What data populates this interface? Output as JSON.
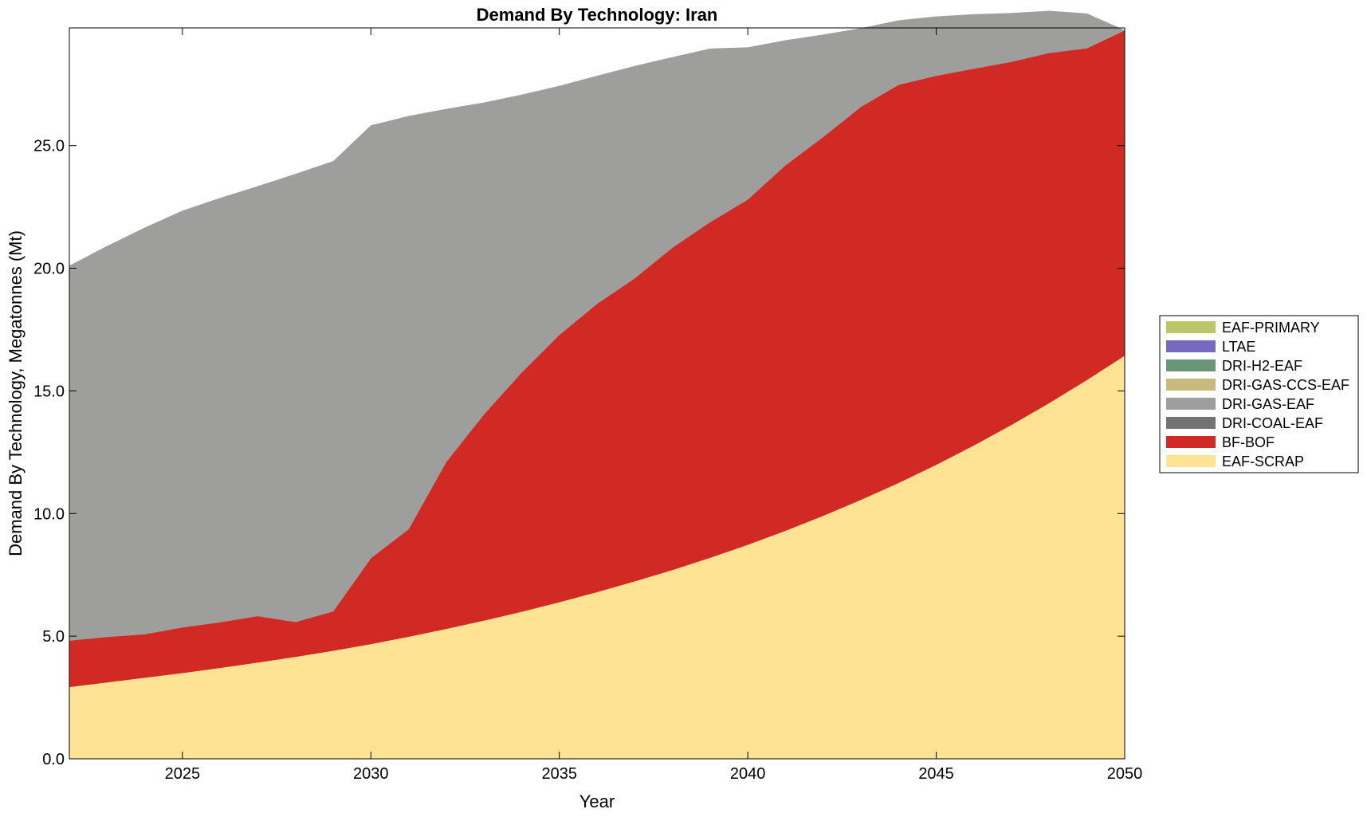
{
  "chart_data": {
    "type": "area",
    "stacked": true,
    "title": "Demand By Technology: Iran",
    "xlabel": "Year",
    "ylabel": "Demand By Technology, Megatonnes (Mt)",
    "xlim": [
      2022,
      2050
    ],
    "ylim": [
      0,
      29.8
    ],
    "xticks": [
      "2025",
      "2030",
      "2035",
      "2040",
      "2045",
      "2050"
    ],
    "yticks": [
      "0.0",
      "5.0",
      "10.0",
      "15.0",
      "20.0",
      "25.0"
    ],
    "grid": false,
    "legend_position": "right",
    "x": [
      2022,
      2023,
      2024,
      2025,
      2026,
      2027,
      2028,
      2029,
      2030,
      2031,
      2032,
      2033,
      2034,
      2035,
      2036,
      2037,
      2038,
      2039,
      2040,
      2041,
      2042,
      2043,
      2044,
      2045,
      2046,
      2047,
      2048,
      2049,
      2050
    ],
    "series": [
      {
        "name": "EAF-SCRAP",
        "color": "#fee395",
        "values": [
          2.93,
          3.12,
          3.31,
          3.5,
          3.71,
          3.93,
          4.16,
          4.41,
          4.68,
          4.98,
          5.3,
          5.64,
          6.0,
          6.39,
          6.8,
          7.24,
          7.7,
          8.2,
          8.73,
          9.3,
          9.91,
          10.56,
          11.25,
          11.99,
          12.78,
          13.62,
          14.51,
          15.45,
          16.44
        ]
      },
      {
        "name": "BF-BOF",
        "color": "#d12a24",
        "values": [
          1.89,
          1.85,
          1.77,
          1.86,
          1.86,
          1.89,
          1.42,
          1.6,
          3.5,
          4.38,
          6.8,
          8.4,
          9.75,
          10.89,
          11.75,
          12.35,
          13.14,
          13.68,
          14.07,
          14.9,
          15.44,
          16.02,
          16.23,
          15.86,
          15.36,
          14.8,
          14.27,
          13.52,
          13.26
        ]
      },
      {
        "name": "DRI-COAL-EAF",
        "color": "#727272",
        "values": [
          0,
          0,
          0,
          0,
          0,
          0,
          0,
          0,
          0,
          0,
          0,
          0,
          0,
          0,
          0,
          0,
          0,
          0,
          0,
          0,
          0,
          0,
          0,
          0,
          0,
          0,
          0,
          0,
          0
        ]
      },
      {
        "name": "DRI-GAS-EAF",
        "color": "#9e9e9c",
        "values": [
          15.28,
          15.93,
          16.57,
          16.98,
          17.29,
          17.52,
          18.26,
          18.35,
          17.64,
          16.84,
          14.39,
          12.71,
          11.32,
          10.15,
          9.29,
          8.65,
          7.76,
          7.07,
          6.2,
          5.09,
          4.17,
          3.2,
          2.62,
          2.41,
          2.21,
          1.98,
          1.71,
          1.41,
          0.0
        ]
      },
      {
        "name": "DRI-GAS-CCS-EAF",
        "color": "#c7bc7e",
        "values": [
          0,
          0,
          0,
          0,
          0,
          0,
          0,
          0,
          0,
          0,
          0,
          0,
          0,
          0,
          0,
          0,
          0,
          0,
          0,
          0,
          0,
          0,
          0,
          0,
          0,
          0,
          0,
          0,
          0
        ]
      },
      {
        "name": "DRI-H2-EAF",
        "color": "#6a9578",
        "values": [
          0,
          0,
          0,
          0,
          0,
          0,
          0,
          0,
          0,
          0,
          0,
          0,
          0,
          0,
          0,
          0,
          0,
          0,
          0,
          0,
          0,
          0,
          0,
          0,
          0,
          0,
          0,
          0,
          0
        ]
      },
      {
        "name": "LTAE",
        "color": "#756ac0",
        "values": [
          0,
          0,
          0,
          0,
          0,
          0,
          0,
          0,
          0,
          0,
          0,
          0,
          0,
          0,
          0,
          0,
          0,
          0,
          0,
          0,
          0,
          0,
          0,
          0,
          0,
          0,
          0,
          0,
          0
        ]
      },
      {
        "name": "EAF-PRIMARY",
        "color": "#bac668",
        "values": [
          0,
          0,
          0,
          0,
          0,
          0,
          0,
          0,
          0,
          0,
          0,
          0,
          0,
          0,
          0,
          0,
          0,
          0,
          0,
          0,
          0,
          0,
          0,
          0,
          0,
          0,
          0,
          0,
          0
        ]
      }
    ],
    "legend_order": [
      "EAF-PRIMARY",
      "LTAE",
      "DRI-H2-EAF",
      "DRI-GAS-CCS-EAF",
      "DRI-GAS-EAF",
      "DRI-COAL-EAF",
      "BF-BOF",
      "EAF-SCRAP"
    ]
  }
}
